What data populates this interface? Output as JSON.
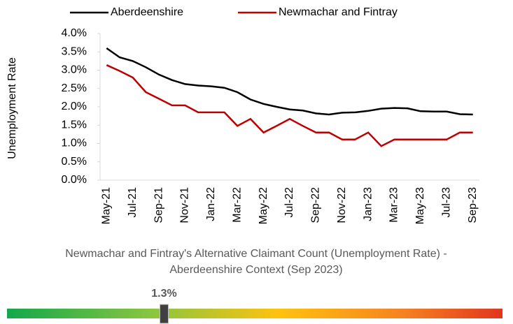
{
  "chart_data": {
    "type": "line",
    "title": [
      "Newmachar and Fintray's Alternative Claimant Count (Unemployment Rate) -",
      "Aberdeenshire Context (Sep 2023)"
    ],
    "y_axis_label": "Unemployment Rate",
    "categories": [
      "May-21",
      null,
      "Jul-21",
      null,
      "Sep-21",
      null,
      "Nov-21",
      null,
      "Jan-22",
      null,
      "Mar-22",
      null,
      "May-22",
      null,
      "Jul-22",
      null,
      "Sep-22",
      null,
      "Nov-22",
      null,
      "Jan-23",
      null,
      "Mar-23",
      null,
      "May-23",
      null,
      "Jul-23",
      null,
      "Sep-23"
    ],
    "series": [
      {
        "name": "Aberdeenshire",
        "color": "#000000",
        "values": [
          3.6,
          3.35,
          3.25,
          3.08,
          2.88,
          2.73,
          2.62,
          2.58,
          2.56,
          2.52,
          2.4,
          2.2,
          2.08,
          2.0,
          1.93,
          1.9,
          1.82,
          1.79,
          1.84,
          1.85,
          1.89,
          1.95,
          1.97,
          1.96,
          1.88,
          1.87,
          1.87,
          1.8,
          1.79
        ]
      },
      {
        "name": "Newmachar and Fintray",
        "color": "#c00000",
        "values": [
          3.14,
          2.98,
          2.8,
          2.4,
          2.22,
          2.04,
          2.04,
          1.85,
          1.85,
          1.85,
          1.48,
          1.67,
          1.3,
          1.48,
          1.67,
          1.48,
          1.3,
          1.3,
          1.11,
          1.11,
          1.3,
          0.93,
          1.11,
          1.11,
          1.11,
          1.11,
          1.11,
          1.3,
          1.3
        ]
      }
    ],
    "ylim": [
      0,
      4
    ],
    "yticks": [
      {
        "value": 0,
        "label": "0.0%"
      },
      {
        "value": 0.5,
        "label": "0.5%"
      },
      {
        "value": 1,
        "label": "1.0%"
      },
      {
        "value": 1.5,
        "label": "1.5%"
      },
      {
        "value": 2,
        "label": "2.0%"
      },
      {
        "value": 2.5,
        "label": "2.5%"
      },
      {
        "value": 3,
        "label": "3.0%"
      },
      {
        "value": 3.5,
        "label": "3.5%"
      },
      {
        "value": 4,
        "label": "4.0%"
      }
    ],
    "legend": "top",
    "gauge": {
      "value": 1.3,
      "label": "1.3%",
      "range": [
        0,
        4.1
      ]
    }
  }
}
